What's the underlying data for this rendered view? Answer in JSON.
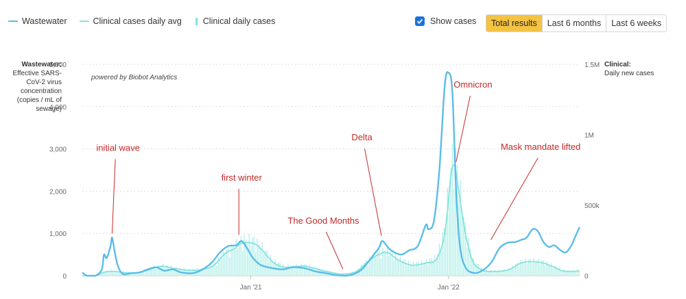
{
  "legend": {
    "wastewater": "Wastewater",
    "clinical_avg": "Clinical cases daily avg",
    "clinical_daily": "Clinical daily cases"
  },
  "controls": {
    "show_cases_label": "Show cases",
    "show_cases_checked": true,
    "ranges": [
      "Total results",
      "Last 6 months",
      "Last 6 weeks"
    ],
    "active_range": "Total results"
  },
  "colors": {
    "wastewater": "#5bbce8",
    "clinical_avg": "#86e2dc",
    "clinical_bar": "#b6efe9",
    "annotation": "#c62828",
    "active_button": "#f5c342",
    "checkbox": "#1a73d9"
  },
  "axes": {
    "left_title_bold": "Wastewater:",
    "left_title_rest": "Effective SARS-CoV-2 virus concentration (copies / mL of sewage)",
    "right_title_bold": "Clinical:",
    "right_title_rest": "Daily new cases",
    "left_ticks": [
      "0",
      "1,000",
      "2,000",
      "3,000",
      "4,000",
      "5,000"
    ],
    "right_ticks": [
      "0",
      "500k",
      "1M",
      "1.5M"
    ],
    "x_ticks": [
      "Jan '21",
      "Jan '22"
    ]
  },
  "credit": "powered by Biobot Analytics",
  "annotations": [
    {
      "label": "initial wave",
      "date": "2020-04-20",
      "value": 900,
      "label_date": "2020-05-01",
      "label_value": 2950
    },
    {
      "label": "first winter",
      "date": "2020-12-10",
      "value": 870,
      "label_date": "2020-12-15",
      "label_value": 2250
    },
    {
      "label": "The Good Months",
      "date": "2021-06-20",
      "value": 60,
      "label_date": "2021-05-15",
      "label_value": 1230
    },
    {
      "label": "Delta",
      "date": "2021-08-30",
      "value": 850,
      "label_date": "2021-07-25",
      "label_value": 3200
    },
    {
      "label": "Omnicron",
      "date": "2022-01-15",
      "value": 2600,
      "label_date": "2022-02-15",
      "label_value": 4450
    },
    {
      "label": "Mask mandate lifted",
      "date": "2022-03-20",
      "value": 750,
      "label_date": "2022-06-20",
      "label_value": 2980
    }
  ],
  "chart_data": {
    "type": "line",
    "title": "",
    "x_unit": "date",
    "x_range": [
      "2020-02-25",
      "2022-08-31"
    ],
    "left_ylim": [
      0,
      5000
    ],
    "right_ylim": [
      0,
      1500000
    ],
    "grid": true,
    "legend_position": "top-left",
    "series": [
      {
        "name": "Wastewater",
        "axis": "left",
        "style": "line",
        "points": [
          [
            "2020-02-25",
            80
          ],
          [
            "2020-03-05",
            0
          ],
          [
            "2020-03-20",
            0
          ],
          [
            "2020-04-01",
            150
          ],
          [
            "2020-04-05",
            500
          ],
          [
            "2020-04-10",
            420
          ],
          [
            "2020-04-17",
            700
          ],
          [
            "2020-04-20",
            900
          ],
          [
            "2020-04-25",
            550
          ],
          [
            "2020-05-01",
            220
          ],
          [
            "2020-05-10",
            40
          ],
          [
            "2020-05-25",
            60
          ],
          [
            "2020-06-10",
            80
          ],
          [
            "2020-06-25",
            150
          ],
          [
            "2020-07-10",
            200
          ],
          [
            "2020-07-25",
            120
          ],
          [
            "2020-08-10",
            150
          ],
          [
            "2020-08-25",
            80
          ],
          [
            "2020-09-15",
            60
          ],
          [
            "2020-10-01",
            130
          ],
          [
            "2020-10-20",
            300
          ],
          [
            "2020-11-05",
            550
          ],
          [
            "2020-11-20",
            700
          ],
          [
            "2020-12-05",
            720
          ],
          [
            "2020-12-15",
            820
          ],
          [
            "2020-12-25",
            650
          ],
          [
            "2021-01-05",
            420
          ],
          [
            "2021-01-20",
            250
          ],
          [
            "2021-02-10",
            180
          ],
          [
            "2021-03-01",
            150
          ],
          [
            "2021-03-20",
            200
          ],
          [
            "2021-04-10",
            180
          ],
          [
            "2021-05-01",
            100
          ],
          [
            "2021-05-20",
            60
          ],
          [
            "2021-06-05",
            20
          ],
          [
            "2021-06-25",
            0
          ],
          [
            "2021-07-10",
            40
          ],
          [
            "2021-07-25",
            150
          ],
          [
            "2021-08-10",
            400
          ],
          [
            "2021-08-25",
            650
          ],
          [
            "2021-09-01",
            820
          ],
          [
            "2021-09-15",
            620
          ],
          [
            "2021-10-05",
            500
          ],
          [
            "2021-10-20",
            600
          ],
          [
            "2021-11-05",
            700
          ],
          [
            "2021-11-20",
            1200
          ],
          [
            "2021-11-25",
            1100
          ],
          [
            "2021-12-05",
            1300
          ],
          [
            "2021-12-15",
            2500
          ],
          [
            "2021-12-25",
            4500
          ],
          [
            "2022-01-01",
            4800
          ],
          [
            "2022-01-08",
            4350
          ],
          [
            "2022-01-15",
            2000
          ],
          [
            "2022-01-22",
            700
          ],
          [
            "2022-02-01",
            200
          ],
          [
            "2022-02-15",
            70
          ],
          [
            "2022-03-01",
            100
          ],
          [
            "2022-03-20",
            300
          ],
          [
            "2022-04-05",
            650
          ],
          [
            "2022-04-20",
            780
          ],
          [
            "2022-05-05",
            800
          ],
          [
            "2022-05-15",
            850
          ],
          [
            "2022-05-25",
            900
          ],
          [
            "2022-06-05",
            1100
          ],
          [
            "2022-06-15",
            1050
          ],
          [
            "2022-06-25",
            800
          ],
          [
            "2022-07-05",
            680
          ],
          [
            "2022-07-15",
            720
          ],
          [
            "2022-07-25",
            620
          ],
          [
            "2022-08-05",
            550
          ],
          [
            "2022-08-15",
            700
          ],
          [
            "2022-08-22",
            900
          ],
          [
            "2022-08-31",
            1150
          ]
        ]
      },
      {
        "name": "Clinical cases daily avg",
        "axis": "right",
        "style": "line",
        "points": [
          [
            "2020-02-25",
            0
          ],
          [
            "2020-03-20",
            0
          ],
          [
            "2020-04-05",
            25000
          ],
          [
            "2020-04-20",
            32000
          ],
          [
            "2020-05-10",
            24000
          ],
          [
            "2020-06-05",
            20000
          ],
          [
            "2020-06-25",
            40000
          ],
          [
            "2020-07-20",
            67000
          ],
          [
            "2020-08-15",
            50000
          ],
          [
            "2020-09-10",
            38000
          ],
          [
            "2020-10-05",
            45000
          ],
          [
            "2020-10-25",
            75000
          ],
          [
            "2020-11-15",
            160000
          ],
          [
            "2020-12-01",
            190000
          ],
          [
            "2020-12-15",
            230000
          ],
          [
            "2021-01-05",
            230000
          ],
          [
            "2021-01-20",
            190000
          ],
          [
            "2021-02-10",
            100000
          ],
          [
            "2021-03-05",
            60000
          ],
          [
            "2021-04-10",
            68000
          ],
          [
            "2021-05-15",
            35000
          ],
          [
            "2021-06-10",
            15000
          ],
          [
            "2021-06-25",
            12000
          ],
          [
            "2021-07-15",
            30000
          ],
          [
            "2021-08-05",
            100000
          ],
          [
            "2021-08-25",
            150000
          ],
          [
            "2021-09-10",
            165000
          ],
          [
            "2021-10-01",
            110000
          ],
          [
            "2021-10-25",
            75000
          ],
          [
            "2021-11-20",
            90000
          ],
          [
            "2021-12-10",
            120000
          ],
          [
            "2021-12-25",
            300000
          ],
          [
            "2022-01-05",
            700000
          ],
          [
            "2022-01-12",
            780000
          ],
          [
            "2022-01-20",
            600000
          ],
          [
            "2022-02-01",
            300000
          ],
          [
            "2022-02-15",
            100000
          ],
          [
            "2022-03-05",
            40000
          ],
          [
            "2022-03-25",
            30000
          ],
          [
            "2022-04-20",
            40000
          ],
          [
            "2022-05-15",
            90000
          ],
          [
            "2022-06-05",
            100000
          ],
          [
            "2022-06-25",
            90000
          ],
          [
            "2022-07-15",
            60000
          ],
          [
            "2022-07-30",
            35000
          ],
          [
            "2022-08-15",
            30000
          ],
          [
            "2022-08-31",
            35000
          ]
        ]
      },
      {
        "name": "Clinical daily cases",
        "axis": "right",
        "style": "bar",
        "note": "daily bars fluctuating around the daily average",
        "points": []
      }
    ]
  }
}
